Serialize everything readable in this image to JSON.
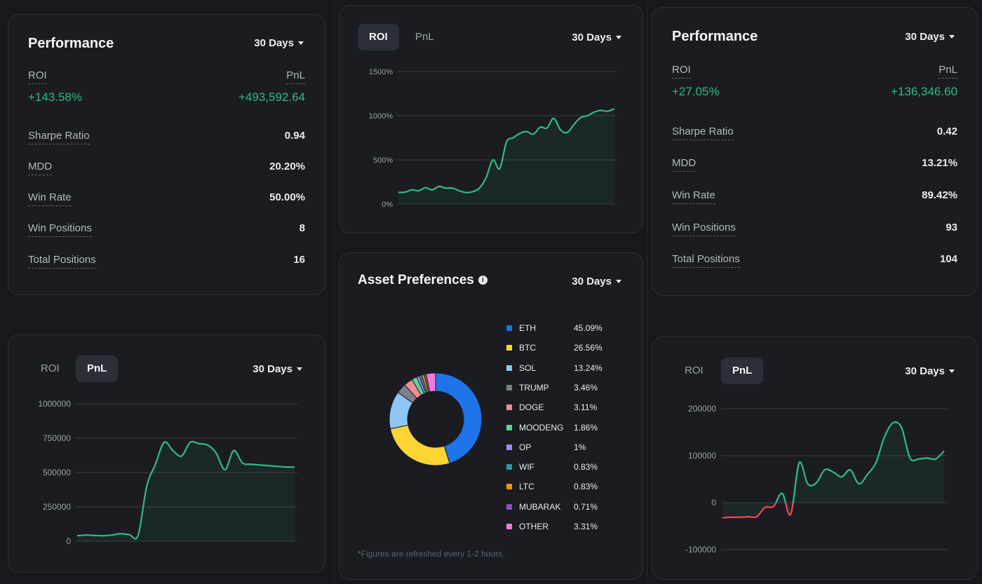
{
  "period_label": "30 Days",
  "left_performance": {
    "title": "Performance",
    "roi_label": "ROI",
    "pnl_label": "PnL",
    "roi_value": "+143.58%",
    "pnl_value": "+493,592.64",
    "stats": [
      {
        "label": "Sharpe Ratio",
        "value": "0.94"
      },
      {
        "label": "MDD",
        "value": "20.20%"
      },
      {
        "label": "Win Rate",
        "value": "50.00%"
      },
      {
        "label": "Win Positions",
        "value": "8"
      },
      {
        "label": "Total Positions",
        "value": "16"
      }
    ]
  },
  "right_performance": {
    "title": "Performance",
    "roi_label": "ROI",
    "pnl_label": "PnL",
    "roi_value": "+27.05%",
    "pnl_value": "+136,346.60",
    "stats": [
      {
        "label": "Sharpe Ratio",
        "value": "0.42"
      },
      {
        "label": "MDD",
        "value": "13.21%"
      },
      {
        "label": "Win Rate",
        "value": "89.42%"
      },
      {
        "label": "Win Positions",
        "value": "93"
      },
      {
        "label": "Total Positions",
        "value": "104"
      }
    ]
  },
  "tabs": {
    "roi": "ROI",
    "pnl": "PnL"
  },
  "asset_prefs": {
    "title": "Asset Preferences",
    "note": "*Figures are refreshed every 1-2 hours.",
    "items": [
      {
        "name": "ETH",
        "pct": "45.09%",
        "value": 45.09,
        "color": "#1e74e8"
      },
      {
        "name": "BTC",
        "pct": "26.56%",
        "value": 26.56,
        "color": "#fcd535"
      },
      {
        "name": "SOL",
        "pct": "13.24%",
        "value": 13.24,
        "color": "#8ec5f7"
      },
      {
        "name": "TRUMP",
        "pct": "3.46%",
        "value": 3.46,
        "color": "#7d8089"
      },
      {
        "name": "DOGE",
        "pct": "3.11%",
        "value": 3.11,
        "color": "#f28b96"
      },
      {
        "name": "MOODENG",
        "pct": "1.86%",
        "value": 1.86,
        "color": "#5fd49a"
      },
      {
        "name": "OP",
        "pct": "1%",
        "value": 1,
        "color": "#9a8cf0"
      },
      {
        "name": "WIF",
        "pct": "0.83%",
        "value": 0.83,
        "color": "#2a9a9e"
      },
      {
        "name": "LTC",
        "pct": "0.83%",
        "value": 0.83,
        "color": "#f0950e"
      },
      {
        "name": "MUBARAK",
        "pct": "0.71%",
        "value": 0.71,
        "color": "#8a4fc9"
      },
      {
        "name": "OTHER",
        "pct": "3.31%",
        "value": 3.31,
        "color": "#f07ad8"
      }
    ]
  },
  "colors": {
    "positive": "#2ebd85",
    "negative": "#f6465d",
    "grid": "#3a3d45"
  },
  "chart_data": [
    {
      "type": "line",
      "name": "roi-chart-top-middle",
      "yticks": [
        "1500%",
        "1000%",
        "500%",
        "0%"
      ],
      "tick_values": [
        1500,
        1000,
        500,
        0
      ],
      "ylim": [
        0,
        1500
      ],
      "values": [
        130,
        135,
        160,
        150,
        185,
        160,
        200,
        180,
        180,
        150,
        130,
        140,
        180,
        300,
        500,
        400,
        700,
        750,
        800,
        820,
        790,
        870,
        860,
        970,
        840,
        810,
        900,
        980,
        1000,
        1040,
        1060,
        1050,
        1080
      ]
    },
    {
      "type": "line",
      "name": "pnl-chart-bottom-left",
      "yticks": [
        "1000000",
        "750000",
        "500000",
        "250000",
        "0"
      ],
      "tick_values": [
        1000000,
        750000,
        500000,
        250000,
        0
      ],
      "ylim": [
        0,
        1000000
      ],
      "values": [
        40000,
        45000,
        42000,
        40000,
        45000,
        55000,
        48000,
        42000,
        400000,
        560000,
        720000,
        660000,
        620000,
        720000,
        710000,
        700000,
        640000,
        520000,
        660000,
        570000,
        560000,
        555000,
        550000,
        545000,
        540000,
        540000
      ]
    },
    {
      "type": "line",
      "name": "pnl-chart-bottom-right",
      "yticks": [
        "200000",
        "100000",
        "0",
        "-100000"
      ],
      "tick_values": [
        200000,
        100000,
        0,
        -100000
      ],
      "ylim": [
        -100000,
        200000
      ],
      "values": [
        -32000,
        -31000,
        -31000,
        -30000,
        -30000,
        -10000,
        -8000,
        20000,
        -25000,
        85000,
        40000,
        42000,
        70000,
        65000,
        55000,
        70000,
        40000,
        60000,
        85000,
        140000,
        170000,
        160000,
        95000,
        93000,
        95000,
        93000,
        110000
      ]
    }
  ]
}
